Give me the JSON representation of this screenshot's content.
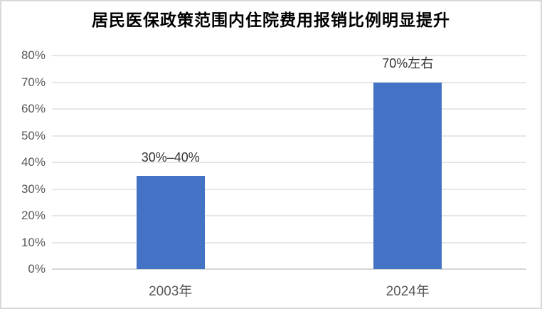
{
  "chart_data": {
    "type": "bar",
    "title": "居民医保政策范围内住院费用报销比例明显提升",
    "categories": [
      "2003年",
      "2024年"
    ],
    "values": [
      35,
      70
    ],
    "value_labels": [
      "30%–40%",
      "70%左右"
    ],
    "ylim": [
      0,
      80
    ],
    "ytick_step": 10,
    "ytick_labels": [
      "0%",
      "10%",
      "20%",
      "30%",
      "40%",
      "50%",
      "60%",
      "70%",
      "80%"
    ],
    "grid": true,
    "legend": "none",
    "colors": {
      "bar": "#4472c4",
      "axis_label": "#595959",
      "data_label": "#333333",
      "gridline": "#e6e6e6",
      "axis_line": "#d6d6d6",
      "frame_border": "#d9d9d9",
      "background": "#ffffff",
      "title": "#000000"
    }
  }
}
